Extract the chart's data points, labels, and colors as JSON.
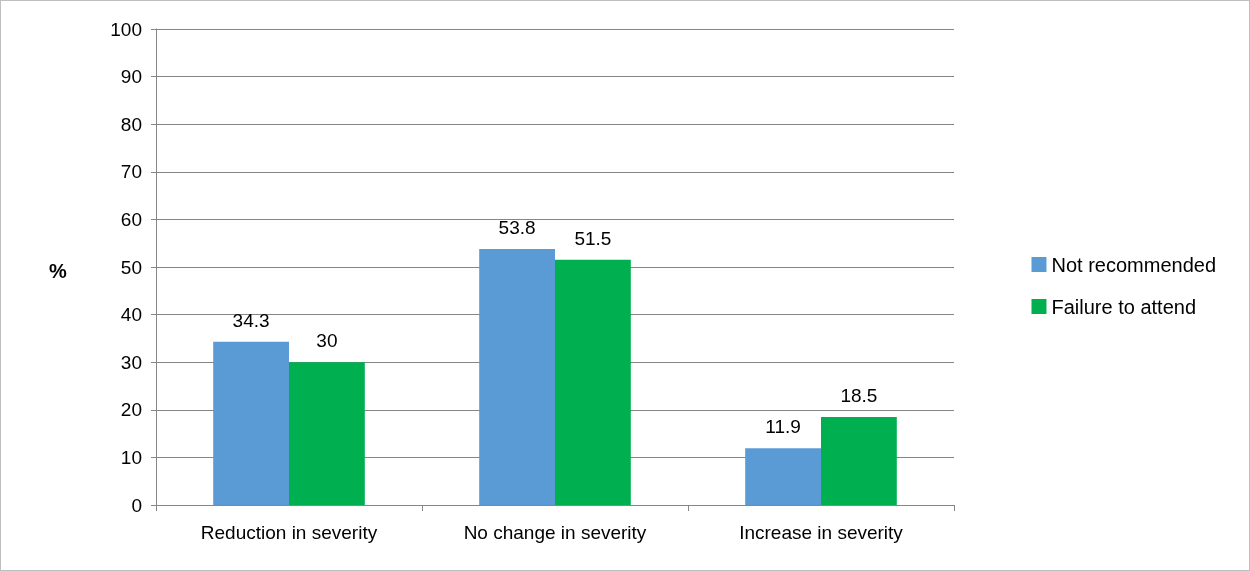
{
  "chart_data": {
    "type": "bar",
    "ylabel": "%",
    "categories": [
      "Reduction in severity",
      "No change in severity",
      "Increase in severity"
    ],
    "series": [
      {
        "name": "Not recommended",
        "color": "#5b9bd5",
        "values": [
          34.3,
          53.8,
          11.9
        ]
      },
      {
        "name": "Failure to attend",
        "color": "#00b050",
        "values": [
          30,
          51.5,
          18.5
        ]
      }
    ],
    "ylim": [
      0,
      100
    ],
    "yticks": [
      0,
      10,
      20,
      30,
      40,
      50,
      60,
      70,
      80,
      90,
      100
    ],
    "grid": "y",
    "legend": "right",
    "data_labels": true
  }
}
